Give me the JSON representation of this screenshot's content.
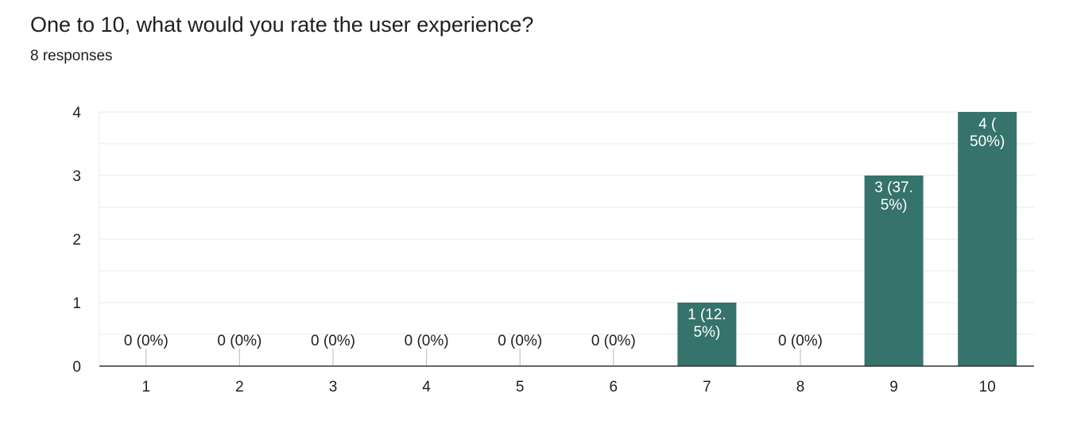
{
  "question": {
    "title": "One to 10, what would you rate the user experience?",
    "responses_label": "8 responses"
  },
  "colors": {
    "bar": "#35736c",
    "grid": "#e8e8e8",
    "axis": "#333333",
    "text": "#202124",
    "bar_label": "#ffffff"
  },
  "chart_data": {
    "type": "bar",
    "title": "One to 10, what would you rate the user experience?",
    "xlabel": "",
    "ylabel": "",
    "categories": [
      "1",
      "2",
      "3",
      "4",
      "5",
      "6",
      "7",
      "8",
      "9",
      "10"
    ],
    "values": [
      0,
      0,
      0,
      0,
      0,
      0,
      1,
      0,
      3,
      4
    ],
    "data_labels": [
      [
        "0 (0%)"
      ],
      [
        "0 (0%)"
      ],
      [
        "0 (0%)"
      ],
      [
        "0 (0%)"
      ],
      [
        "0 (0%)"
      ],
      [
        "0 (0%)"
      ],
      [
        "1 (12.",
        "5%)"
      ],
      [
        "0 (0%)"
      ],
      [
        "3 (37.",
        "5%)"
      ],
      [
        "4 (",
        "50%)"
      ]
    ],
    "ylim": [
      0,
      4
    ],
    "yticks": [
      "0",
      "1",
      "2",
      "3",
      "4"
    ],
    "grid": true
  }
}
